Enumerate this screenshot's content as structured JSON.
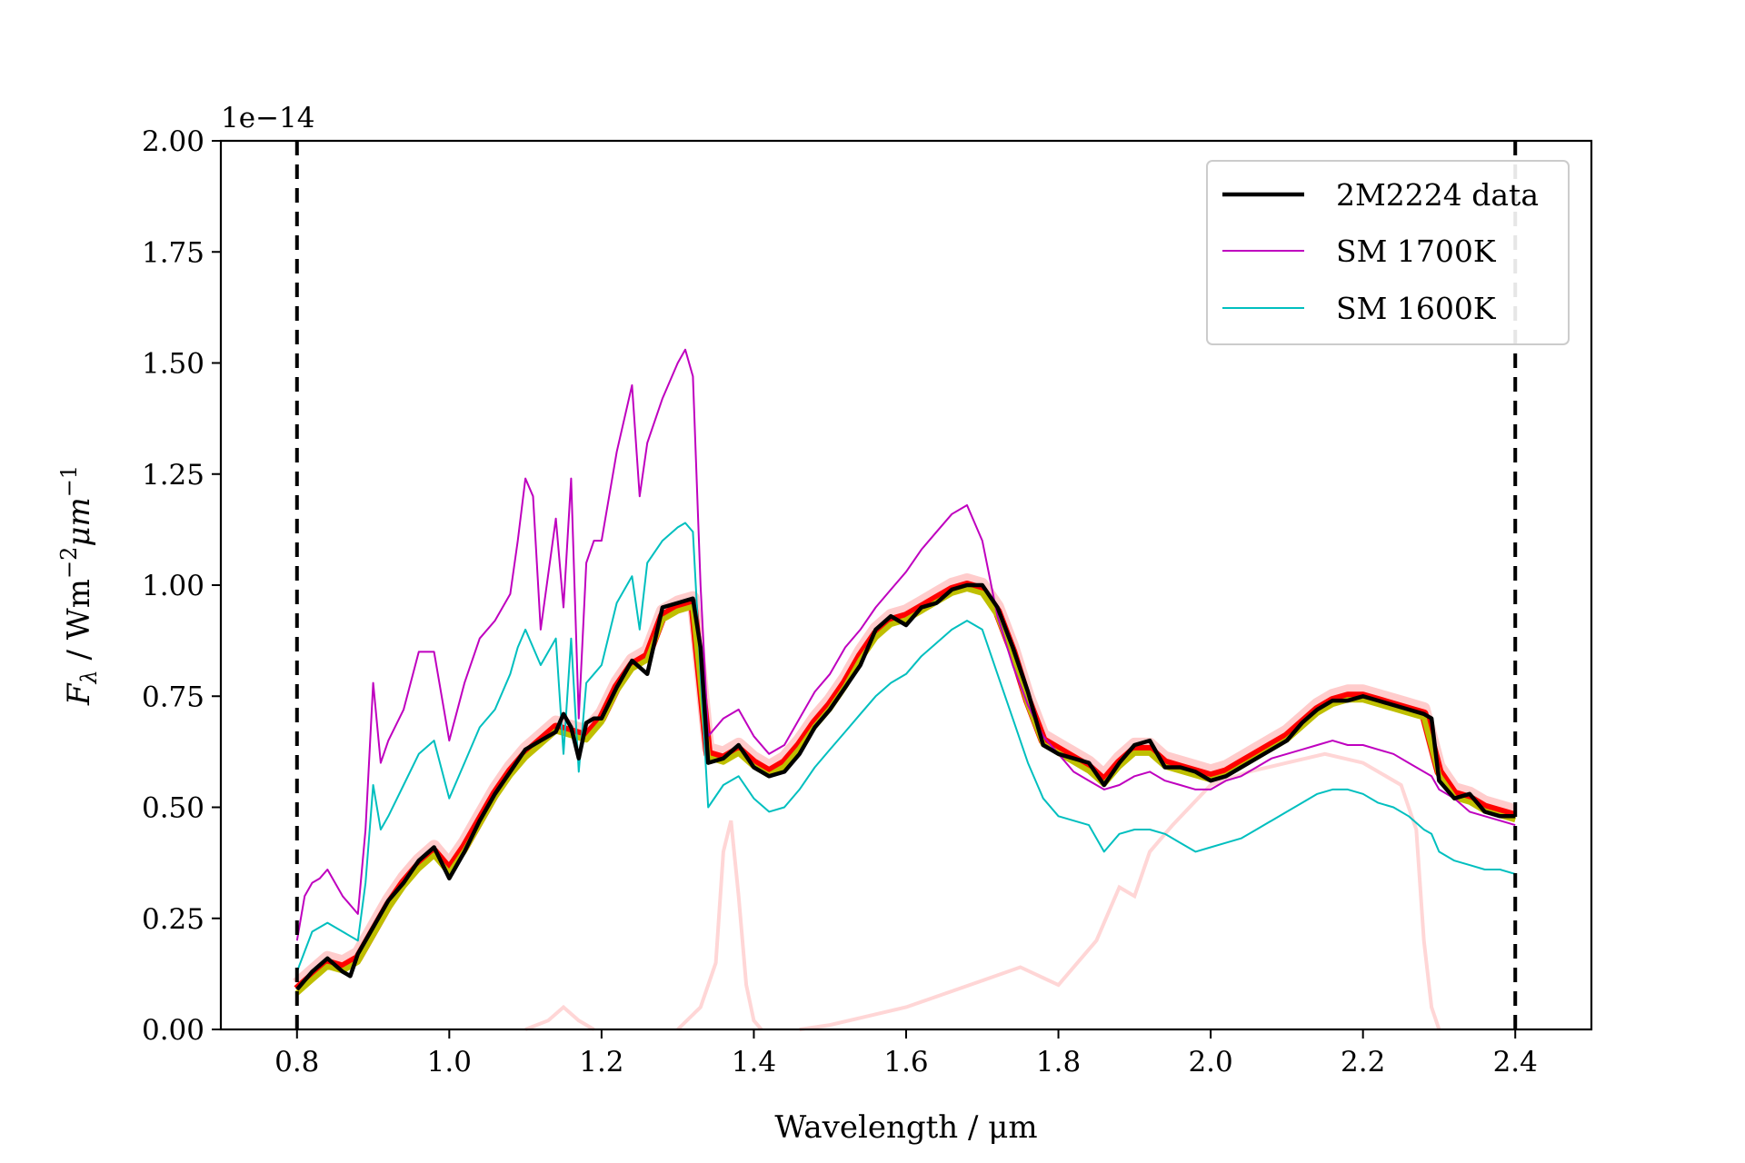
{
  "chart_data": {
    "type": "line",
    "offset_text": "1e−14",
    "xlabel": "Wavelength / μm",
    "ylabel_parts": {
      "base": "F",
      "sub": "λ",
      "mid": " / Wm",
      "sup1": "−2",
      "mid2": "μm",
      "sup2": "−1"
    },
    "xlim": [
      0.7,
      2.5
    ],
    "ylim": [
      0.0,
      2.0
    ],
    "x_ticks": [
      0.8,
      1.0,
      1.2,
      1.4,
      1.6,
      1.8,
      2.0,
      2.2,
      2.4
    ],
    "x_tick_labels": [
      "0.8",
      "1.0",
      "1.2",
      "1.4",
      "1.6",
      "1.8",
      "2.0",
      "2.2",
      "2.4"
    ],
    "y_ticks": [
      0.0,
      0.25,
      0.5,
      0.75,
      1.0,
      1.25,
      1.5,
      1.75,
      2.0
    ],
    "y_tick_labels": [
      "0.00",
      "0.25",
      "0.50",
      "0.75",
      "1.00",
      "1.25",
      "1.50",
      "1.75",
      "2.00"
    ],
    "grid": false,
    "legend_position": "top-right",
    "vlines": [
      0.8,
      2.4
    ],
    "colors": {
      "data": "#000000",
      "sm1700": "#bf00bf",
      "sm1600": "#00bfbf",
      "model_draws": "#ff0000",
      "yellow_fit": "#bfbf00",
      "filters": "#ffd6d6"
    },
    "series": [
      {
        "name": "2M2224 data",
        "key": "data",
        "x": [
          0.8,
          0.82,
          0.84,
          0.86,
          0.87,
          0.88,
          0.9,
          0.92,
          0.94,
          0.96,
          0.98,
          1.0,
          1.02,
          1.04,
          1.06,
          1.08,
          1.1,
          1.12,
          1.14,
          1.15,
          1.16,
          1.17,
          1.18,
          1.19,
          1.2,
          1.22,
          1.24,
          1.26,
          1.28,
          1.3,
          1.32,
          1.33,
          1.34,
          1.36,
          1.38,
          1.4,
          1.42,
          1.44,
          1.46,
          1.48,
          1.5,
          1.52,
          1.54,
          1.56,
          1.58,
          1.6,
          1.62,
          1.64,
          1.66,
          1.68,
          1.7,
          1.72,
          1.74,
          1.76,
          1.78,
          1.8,
          1.82,
          1.84,
          1.86,
          1.88,
          1.9,
          1.92,
          1.94,
          1.96,
          1.98,
          2.0,
          2.02,
          2.04,
          2.06,
          2.08,
          2.1,
          2.12,
          2.14,
          2.16,
          2.18,
          2.2,
          2.22,
          2.24,
          2.26,
          2.28,
          2.29,
          2.3,
          2.32,
          2.34,
          2.36,
          2.38,
          2.4
        ],
        "y": [
          0.09,
          0.13,
          0.16,
          0.13,
          0.12,
          0.17,
          0.23,
          0.29,
          0.33,
          0.38,
          0.41,
          0.34,
          0.4,
          0.47,
          0.53,
          0.58,
          0.63,
          0.65,
          0.67,
          0.71,
          0.68,
          0.61,
          0.69,
          0.7,
          0.7,
          0.77,
          0.83,
          0.8,
          0.95,
          0.96,
          0.97,
          0.86,
          0.6,
          0.61,
          0.64,
          0.59,
          0.57,
          0.58,
          0.62,
          0.68,
          0.72,
          0.77,
          0.82,
          0.9,
          0.93,
          0.91,
          0.95,
          0.96,
          0.99,
          1.0,
          1.0,
          0.95,
          0.86,
          0.76,
          0.64,
          0.62,
          0.61,
          0.6,
          0.55,
          0.6,
          0.64,
          0.65,
          0.59,
          0.59,
          0.58,
          0.56,
          0.57,
          0.59,
          0.61,
          0.63,
          0.65,
          0.69,
          0.72,
          0.74,
          0.74,
          0.75,
          0.74,
          0.73,
          0.72,
          0.71,
          0.7,
          0.56,
          0.52,
          0.53,
          0.49,
          0.48,
          0.48
        ]
      },
      {
        "name": "SM 1700K",
        "key": "sm1700",
        "x": [
          0.8,
          0.81,
          0.82,
          0.83,
          0.84,
          0.86,
          0.88,
          0.89,
          0.9,
          0.91,
          0.92,
          0.94,
          0.96,
          0.98,
          1.0,
          1.02,
          1.04,
          1.06,
          1.08,
          1.09,
          1.1,
          1.11,
          1.12,
          1.14,
          1.15,
          1.16,
          1.17,
          1.18,
          1.19,
          1.2,
          1.22,
          1.24,
          1.25,
          1.26,
          1.28,
          1.3,
          1.31,
          1.32,
          1.33,
          1.34,
          1.36,
          1.38,
          1.4,
          1.42,
          1.44,
          1.46,
          1.48,
          1.5,
          1.52,
          1.54,
          1.56,
          1.58,
          1.6,
          1.62,
          1.64,
          1.66,
          1.68,
          1.7,
          1.72,
          1.74,
          1.76,
          1.78,
          1.8,
          1.82,
          1.84,
          1.86,
          1.88,
          1.9,
          1.92,
          1.94,
          1.96,
          1.98,
          2.0,
          2.02,
          2.04,
          2.06,
          2.08,
          2.1,
          2.12,
          2.14,
          2.16,
          2.18,
          2.2,
          2.22,
          2.24,
          2.26,
          2.28,
          2.29,
          2.3,
          2.32,
          2.34,
          2.36,
          2.38,
          2.4
        ],
        "y": [
          0.2,
          0.3,
          0.33,
          0.34,
          0.36,
          0.3,
          0.26,
          0.45,
          0.78,
          0.6,
          0.65,
          0.72,
          0.85,
          0.85,
          0.65,
          0.78,
          0.88,
          0.92,
          0.98,
          1.1,
          1.24,
          1.2,
          0.9,
          1.15,
          0.95,
          1.24,
          0.7,
          1.05,
          1.1,
          1.1,
          1.3,
          1.45,
          1.2,
          1.32,
          1.42,
          1.5,
          1.53,
          1.47,
          1.0,
          0.66,
          0.7,
          0.72,
          0.66,
          0.62,
          0.64,
          0.7,
          0.76,
          0.8,
          0.86,
          0.9,
          0.95,
          0.99,
          1.03,
          1.08,
          1.12,
          1.16,
          1.18,
          1.1,
          0.93,
          0.82,
          0.73,
          0.66,
          0.62,
          0.58,
          0.56,
          0.54,
          0.55,
          0.57,
          0.58,
          0.56,
          0.55,
          0.54,
          0.54,
          0.56,
          0.57,
          0.59,
          0.61,
          0.62,
          0.63,
          0.64,
          0.65,
          0.64,
          0.64,
          0.63,
          0.62,
          0.6,
          0.58,
          0.57,
          0.54,
          0.52,
          0.49,
          0.48,
          0.47,
          0.46
        ]
      },
      {
        "name": "SM 1600K",
        "key": "sm1600",
        "x": [
          0.8,
          0.82,
          0.84,
          0.86,
          0.88,
          0.89,
          0.9,
          0.91,
          0.92,
          0.94,
          0.96,
          0.98,
          1.0,
          1.02,
          1.04,
          1.06,
          1.08,
          1.09,
          1.1,
          1.12,
          1.14,
          1.15,
          1.16,
          1.17,
          1.18,
          1.19,
          1.2,
          1.22,
          1.24,
          1.25,
          1.26,
          1.28,
          1.3,
          1.31,
          1.32,
          1.33,
          1.34,
          1.36,
          1.38,
          1.4,
          1.42,
          1.44,
          1.46,
          1.48,
          1.5,
          1.52,
          1.54,
          1.56,
          1.58,
          1.6,
          1.62,
          1.64,
          1.66,
          1.68,
          1.7,
          1.72,
          1.74,
          1.76,
          1.78,
          1.8,
          1.82,
          1.84,
          1.86,
          1.88,
          1.9,
          1.92,
          1.94,
          1.96,
          1.98,
          2.0,
          2.02,
          2.04,
          2.06,
          2.08,
          2.1,
          2.12,
          2.14,
          2.16,
          2.18,
          2.2,
          2.22,
          2.24,
          2.26,
          2.28,
          2.29,
          2.3,
          2.32,
          2.34,
          2.36,
          2.38,
          2.4
        ],
        "y": [
          0.13,
          0.22,
          0.24,
          0.22,
          0.2,
          0.33,
          0.55,
          0.45,
          0.48,
          0.55,
          0.62,
          0.65,
          0.52,
          0.6,
          0.68,
          0.72,
          0.8,
          0.86,
          0.9,
          0.82,
          0.88,
          0.62,
          0.88,
          0.58,
          0.78,
          0.8,
          0.82,
          0.96,
          1.02,
          0.9,
          1.05,
          1.1,
          1.13,
          1.14,
          1.12,
          0.8,
          0.5,
          0.55,
          0.57,
          0.52,
          0.49,
          0.5,
          0.54,
          0.59,
          0.63,
          0.67,
          0.71,
          0.75,
          0.78,
          0.8,
          0.84,
          0.87,
          0.9,
          0.92,
          0.9,
          0.8,
          0.7,
          0.6,
          0.52,
          0.48,
          0.47,
          0.46,
          0.4,
          0.44,
          0.45,
          0.45,
          0.44,
          0.42,
          0.4,
          0.41,
          0.42,
          0.43,
          0.45,
          0.47,
          0.49,
          0.51,
          0.53,
          0.54,
          0.54,
          0.53,
          0.51,
          0.5,
          0.48,
          0.45,
          0.44,
          0.4,
          0.38,
          0.37,
          0.36,
          0.36,
          0.35
        ]
      }
    ],
    "model_band": {
      "key": "model_draws",
      "x": [
        0.8,
        0.82,
        0.84,
        0.86,
        0.88,
        0.9,
        0.92,
        0.94,
        0.96,
        0.98,
        1.0,
        1.02,
        1.04,
        1.06,
        1.08,
        1.1,
        1.12,
        1.14,
        1.16,
        1.18,
        1.2,
        1.22,
        1.24,
        1.26,
        1.28,
        1.3,
        1.32,
        1.34,
        1.36,
        1.38,
        1.4,
        1.42,
        1.44,
        1.46,
        1.48,
        1.5,
        1.52,
        1.54,
        1.56,
        1.58,
        1.6,
        1.62,
        1.64,
        1.66,
        1.68,
        1.7,
        1.72,
        1.74,
        1.76,
        1.78,
        1.8,
        1.82,
        1.84,
        1.86,
        1.88,
        1.9,
        1.92,
        1.94,
        1.96,
        1.98,
        2.0,
        2.02,
        2.04,
        2.06,
        2.08,
        2.1,
        2.12,
        2.14,
        2.16,
        2.18,
        2.2,
        2.22,
        2.24,
        2.26,
        2.28,
        2.3,
        2.32,
        2.34,
        2.36,
        2.38,
        2.4
      ],
      "y": [
        0.09,
        0.12,
        0.15,
        0.14,
        0.16,
        0.22,
        0.28,
        0.33,
        0.37,
        0.4,
        0.36,
        0.41,
        0.47,
        0.53,
        0.58,
        0.62,
        0.65,
        0.68,
        0.67,
        0.66,
        0.7,
        0.77,
        0.82,
        0.84,
        0.93,
        0.95,
        0.96,
        0.62,
        0.61,
        0.63,
        0.6,
        0.58,
        0.6,
        0.64,
        0.69,
        0.73,
        0.78,
        0.84,
        0.89,
        0.92,
        0.93,
        0.95,
        0.97,
        0.99,
        1.0,
        0.99,
        0.94,
        0.85,
        0.74,
        0.65,
        0.63,
        0.61,
        0.59,
        0.56,
        0.6,
        0.63,
        0.63,
        0.6,
        0.59,
        0.58,
        0.57,
        0.58,
        0.6,
        0.62,
        0.64,
        0.66,
        0.69,
        0.72,
        0.74,
        0.75,
        0.75,
        0.74,
        0.73,
        0.72,
        0.71,
        0.58,
        0.53,
        0.52,
        0.5,
        0.49,
        0.48
      ]
    },
    "filter_curves": [
      {
        "x": [
          1.1,
          1.13,
          1.15,
          1.17,
          1.19
        ],
        "y": [
          0.0,
          0.02,
          0.05,
          0.02,
          0.0
        ]
      },
      {
        "x": [
          1.3,
          1.33,
          1.35,
          1.36,
          1.37,
          1.38,
          1.39,
          1.4,
          1.41
        ],
        "y": [
          0.0,
          0.05,
          0.15,
          0.4,
          0.47,
          0.3,
          0.1,
          0.02,
          0.0
        ]
      },
      {
        "x": [
          1.46,
          1.5,
          1.55,
          1.6,
          1.65,
          1.7,
          1.75,
          1.8,
          1.85,
          1.88,
          1.9,
          1.92,
          1.95,
          2.0,
          2.05,
          2.1,
          2.15,
          2.2,
          2.25,
          2.27,
          2.28,
          2.29,
          2.3
        ],
        "y": [
          0.0,
          0.01,
          0.03,
          0.05,
          0.08,
          0.11,
          0.14,
          0.1,
          0.2,
          0.32,
          0.3,
          0.4,
          0.46,
          0.55,
          0.58,
          0.6,
          0.62,
          0.6,
          0.55,
          0.45,
          0.2,
          0.05,
          0.0
        ]
      }
    ]
  }
}
